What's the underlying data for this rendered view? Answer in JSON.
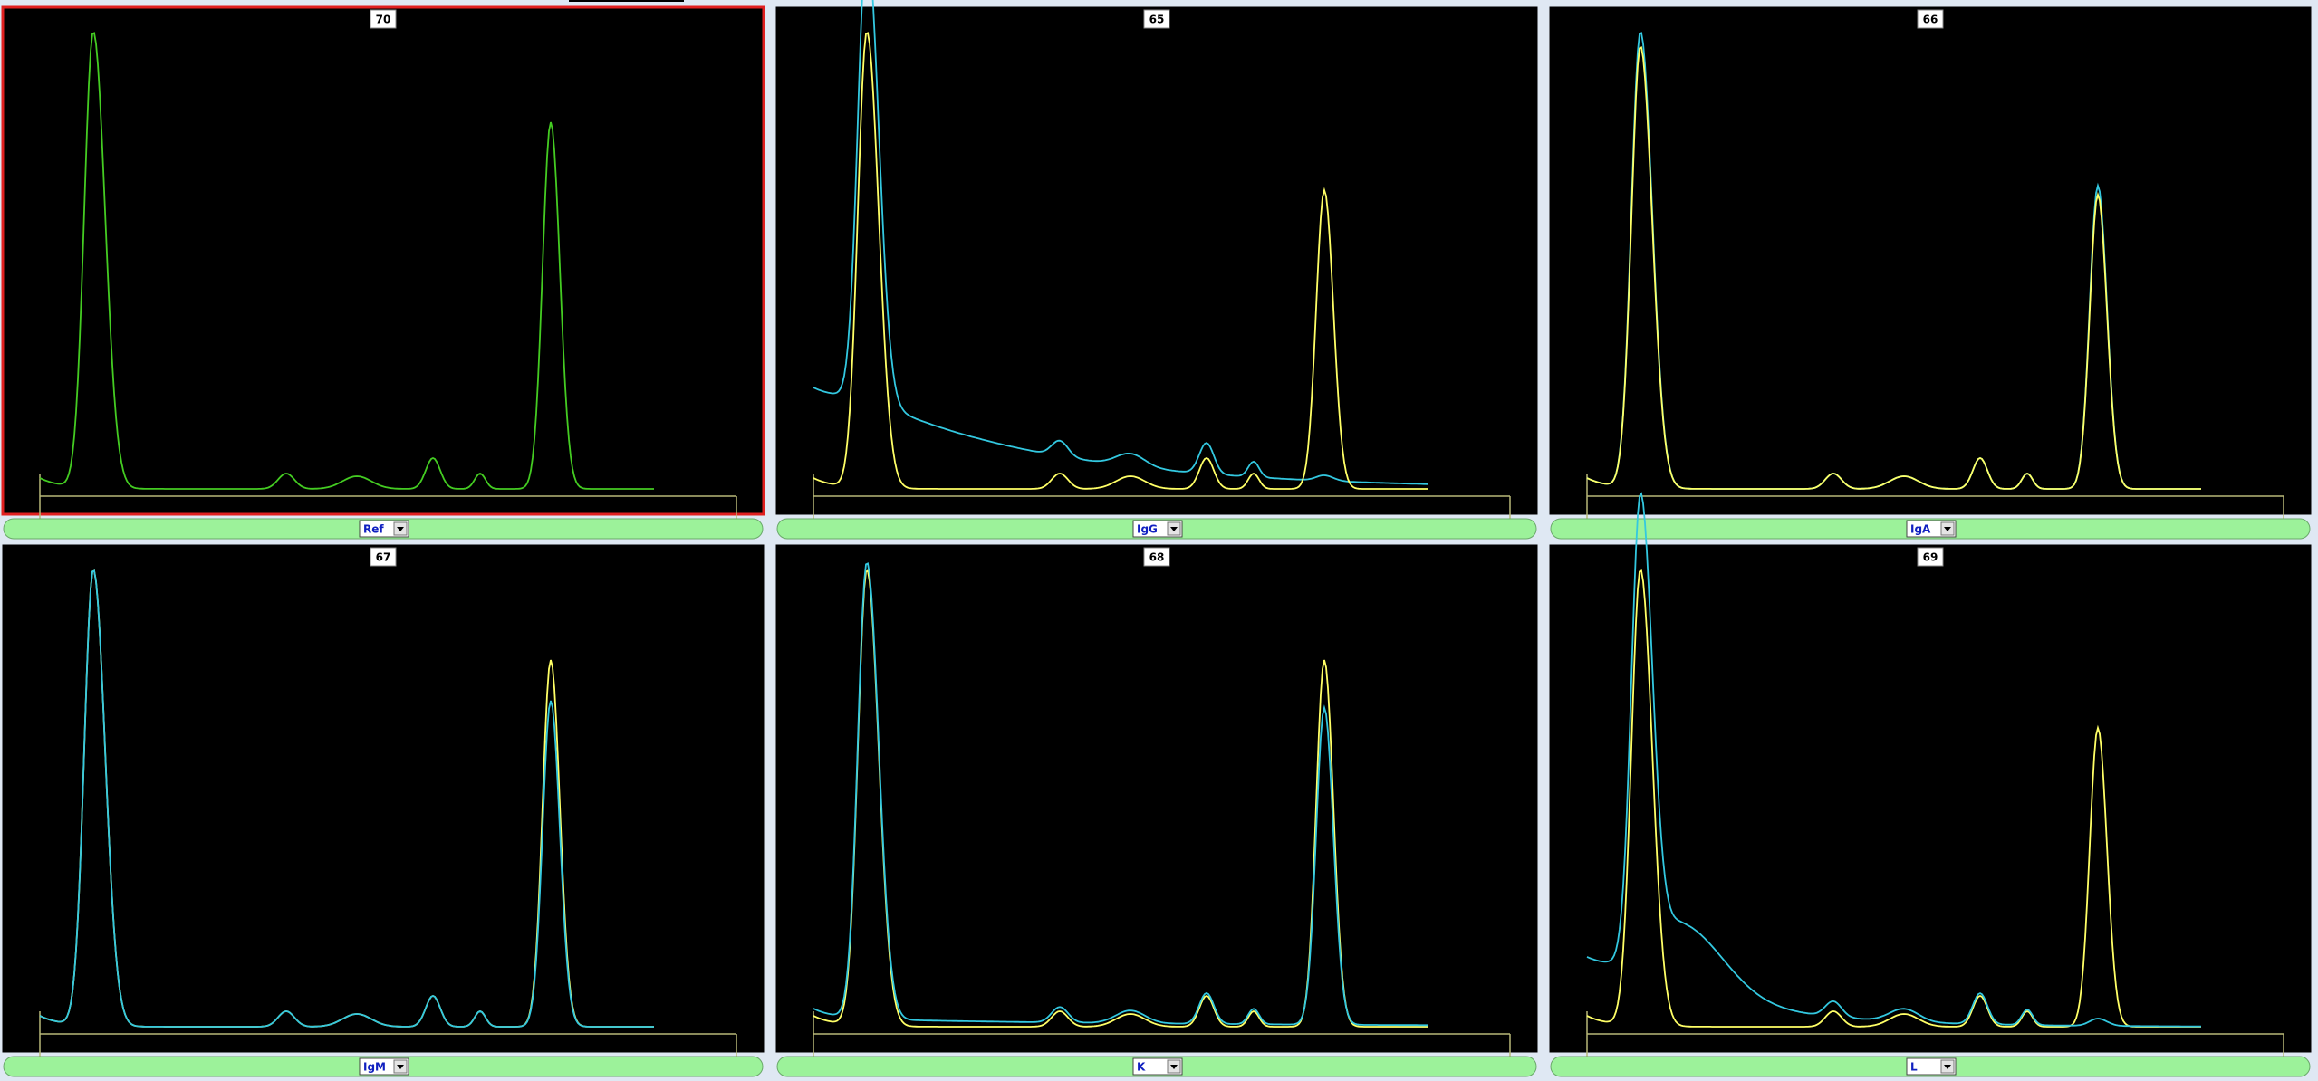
{
  "panels": [
    {
      "number": 70,
      "selection": "Ref"
    },
    {
      "number": 65,
      "selection": "IgG"
    },
    {
      "number": 66,
      "selection": "IgA"
    },
    {
      "number": 67,
      "selection": "IgM"
    },
    {
      "number": 68,
      "selection": "K"
    },
    {
      "number": 69,
      "selection": "L"
    }
  ]
}
